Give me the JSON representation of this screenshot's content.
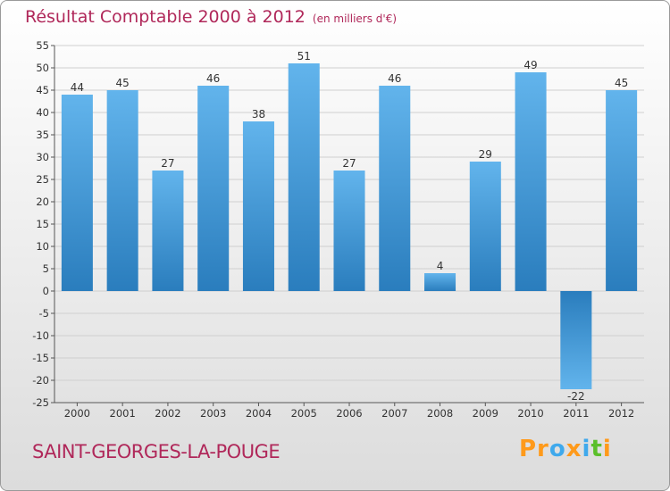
{
  "header": {
    "title": "Résultat Comptable 2000 à 2012",
    "subtitle": "(en milliers d'€)"
  },
  "footer": {
    "commune": "SAINT-GEORGES-LA-POUGE",
    "logo": "Proxiti"
  },
  "colors": {
    "bar_top": "#62b4ec",
    "bar_bottom": "#2a7dbd",
    "title": "#b0285a",
    "grid": "#cfcfcf"
  },
  "chart_data": {
    "type": "bar",
    "title": "Résultat Comptable 2000 à 2012",
    "unit": "(en milliers d'€)",
    "xlabel": "",
    "ylabel": "",
    "categories": [
      "2000",
      "2001",
      "2002",
      "2003",
      "2004",
      "2005",
      "2006",
      "2007",
      "2008",
      "2009",
      "2010",
      "2011",
      "2012"
    ],
    "values": [
      44,
      45,
      27,
      46,
      38,
      51,
      27,
      46,
      4,
      29,
      49,
      -22,
      45
    ],
    "ylim": [
      -25,
      55
    ],
    "yticks": [
      -25,
      -20,
      -15,
      -10,
      -5,
      0,
      5,
      10,
      15,
      20,
      25,
      30,
      35,
      40,
      45,
      50,
      55
    ],
    "grid": true,
    "data_labels": true
  }
}
